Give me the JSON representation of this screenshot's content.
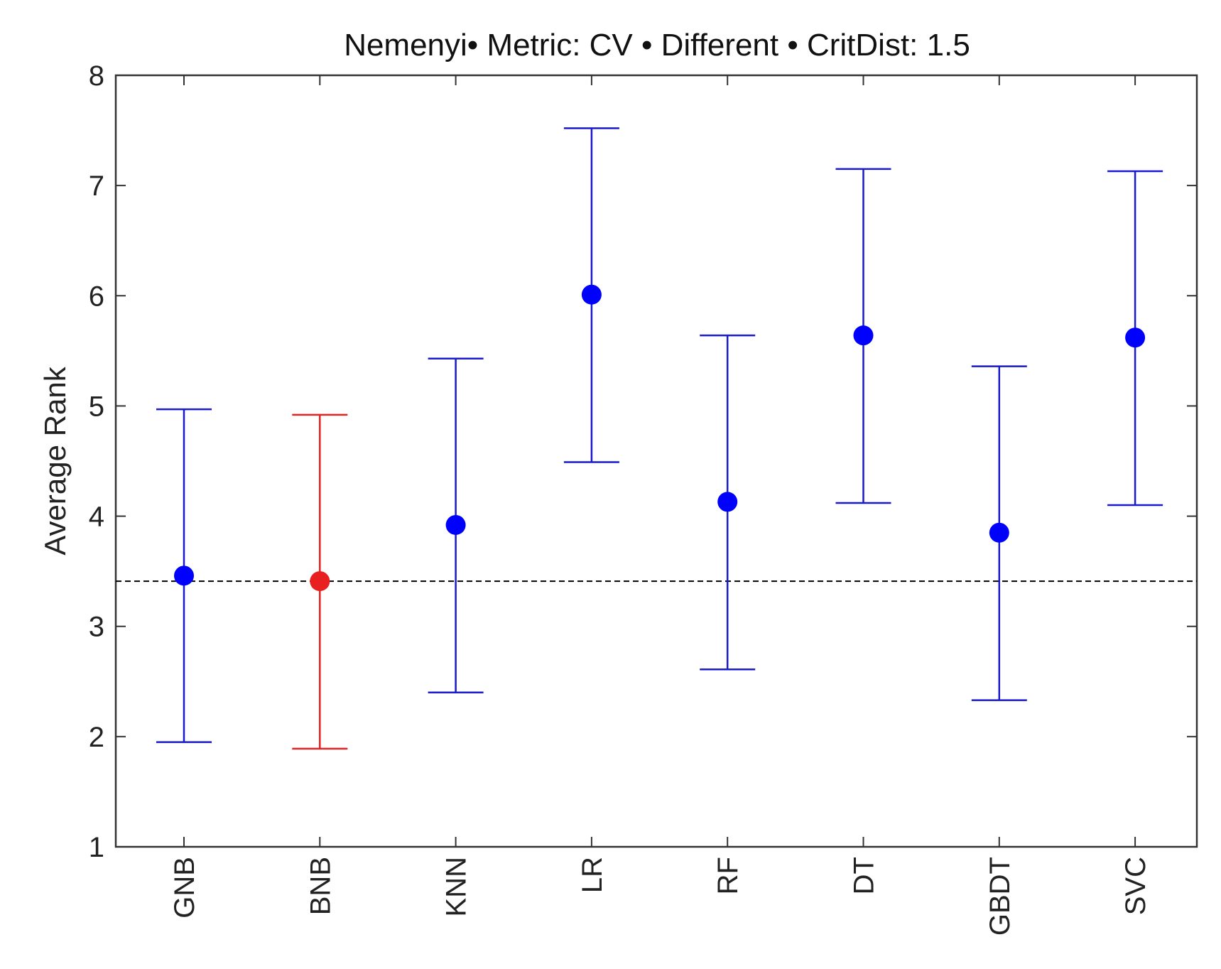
{
  "chart_data": {
    "type": "errorbar",
    "title": "Nemenyi• Metric: CV • Different • CritDist: 1.5",
    "xlabel": "",
    "ylabel": "Average Rank",
    "ylim": [
      1,
      8
    ],
    "yticks": [
      "1",
      "2",
      "3",
      "4",
      "5",
      "6",
      "7",
      "8"
    ],
    "categories": [
      "GNB",
      "BNB",
      "KNN",
      "LR",
      "RF",
      "DT",
      "GBDT",
      "SVC"
    ],
    "means": [
      3.46,
      3.41,
      3.92,
      6.01,
      4.13,
      5.64,
      3.85,
      5.62
    ],
    "lower": [
      1.95,
      1.89,
      2.4,
      4.49,
      2.61,
      4.12,
      2.33,
      4.1
    ],
    "upper": [
      4.97,
      4.92,
      5.43,
      7.52,
      5.64,
      7.15,
      5.36,
      7.13
    ],
    "highlight_index": 1,
    "reference_line": 3.41,
    "colors": {
      "default": "#1a1acd",
      "marker_default": "#0000ff",
      "highlight": "#e82020",
      "axis": "#333333",
      "reference": "#000000"
    }
  }
}
